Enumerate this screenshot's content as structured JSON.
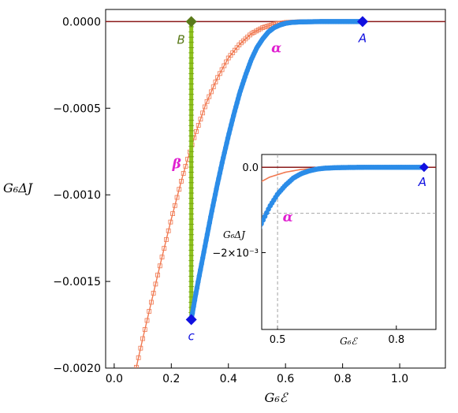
{
  "chart_data": [
    {
      "type": "line",
      "xlabel": "G₆ℰ",
      "ylabel": "G₆ΔJ",
      "xlim": [
        -0.03,
        1.16
      ],
      "ylim": [
        -0.002,
        7e-05
      ],
      "xticks": [
        0.0,
        0.2,
        0.4,
        0.6,
        0.8,
        1.0
      ],
      "xtick_labels": [
        "0.0",
        "0.2",
        "0.4",
        "0.6",
        "0.8",
        "1.0"
      ],
      "yticks": [
        0.0,
        -0.0005,
        -0.001,
        -0.0015,
        -0.002
      ],
      "ytick_labels": [
        "0.0000",
        "−0.0005",
        "−0.0010",
        "−0.0015",
        "−0.0020"
      ],
      "grid": false,
      "colors": {
        "alpha_curve": "#2b8ce8",
        "beta_curve": "#f07850",
        "vertical_segment": "#8fc21f",
        "zero_line": "#8b1a1a",
        "point_A": "#1010e0",
        "point_B": "#5a7a1a",
        "point_c": "#1010e0",
        "label_greek": "#e020d0"
      },
      "series": [
        {
          "name": "α",
          "style": "dots",
          "x": [
            0.27,
            0.285,
            0.3,
            0.32,
            0.34,
            0.36,
            0.38,
            0.4,
            0.42,
            0.44,
            0.46,
            0.48,
            0.5,
            0.52,
            0.54,
            0.56,
            0.58,
            0.6,
            0.62,
            0.65,
            0.68,
            0.72,
            0.76,
            0.8,
            0.84,
            0.87
          ],
          "y": [
            -0.00172,
            -0.00158,
            -0.00145,
            -0.00128,
            -0.00111,
            -0.00095,
            -0.0008,
            -0.00066,
            -0.00053,
            -0.00041,
            -0.00031,
            -0.00022,
            -0.00015,
            -0.0001,
            -6e-05,
            -3.5e-05,
            -2e-05,
            -1e-05,
            -5e-06,
            -2e-06,
            -1e-06,
            0.0,
            0.0,
            0.0,
            0.0,
            0.0
          ]
        },
        {
          "name": "β",
          "style": "line-squares",
          "x": [
            0.07,
            0.1,
            0.13,
            0.16,
            0.2,
            0.24,
            0.28,
            0.32,
            0.36,
            0.4,
            0.44,
            0.48,
            0.52,
            0.56,
            0.6,
            0.64,
            0.68,
            0.72,
            0.76,
            0.8,
            0.84,
            0.87
          ],
          "y": [
            -0.00205,
            -0.00183,
            -0.00162,
            -0.00141,
            -0.00114,
            -0.00089,
            -0.00067,
            -0.00048,
            -0.00033,
            -0.00021,
            -0.00013,
            -7e-05,
            -3.5e-05,
            -1.5e-05,
            -5e-06,
            -1.5e-06,
            0.0,
            0.0,
            0.0,
            0.0,
            0.0,
            0.0
          ]
        },
        {
          "name": "B–c",
          "style": "vertical-segment",
          "x": [
            0.27,
            0.27
          ],
          "y": [
            0.0,
            -0.00172
          ]
        }
      ],
      "points": [
        {
          "label": "A",
          "x": 0.87,
          "y": 0.0
        },
        {
          "label": "B",
          "x": 0.27,
          "y": 0.0
        },
        {
          "label": "c",
          "x": 0.27,
          "y": -0.00172
        }
      ],
      "annotations": [
        {
          "text": "α",
          "x": 0.55,
          "y": -0.00015
        },
        {
          "text": "β",
          "x": 0.235,
          "y": -0.00082
        }
      ]
    },
    {
      "type": "line",
      "role": "inset",
      "xlabel": "G₆ℰ",
      "ylabel": "G₆ΔJ",
      "xlim": [
        0.46,
        0.9
      ],
      "ylim": [
        -0.0038,
        0.0003
      ],
      "xticks": [
        0.5,
        0.8
      ],
      "xtick_labels": [
        "0.5",
        "0.8"
      ],
      "yticks": [
        0.0,
        -0.002
      ],
      "ytick_labels": [
        "0.0",
        "−2×10⁻³"
      ],
      "crosshair": {
        "x": 0.5,
        "y": -0.00108
      },
      "points": [
        {
          "label": "A",
          "x": 0.87,
          "y": 0.0
        }
      ],
      "annotations": [
        {
          "text": "α",
          "x": 0.505,
          "y": -0.0012
        }
      ]
    }
  ]
}
